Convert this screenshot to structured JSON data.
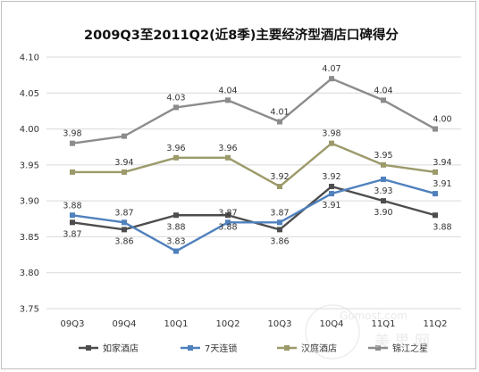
{
  "chart_data": {
    "type": "line",
    "title": "2009Q3至2011Q2(近8季)主要经济型酒店口碑得分",
    "xlabel": "",
    "ylabel": "",
    "categories": [
      "09Q3",
      "09Q4",
      "10Q1",
      "10Q2",
      "10Q3",
      "10Q4",
      "11Q1",
      "11Q2"
    ],
    "ylim": [
      3.75,
      4.1
    ],
    "yticks": [
      "3.75",
      "3.80",
      "3.85",
      "3.90",
      "3.95",
      "4.00",
      "4.05",
      "4.10"
    ],
    "grid": true,
    "legend": "bottom",
    "series": [
      {
        "name": "如家酒店",
        "color": "#4d4d4d",
        "marker": "square",
        "values": [
          3.87,
          3.86,
          3.88,
          3.88,
          3.86,
          3.92,
          3.9,
          3.88
        ],
        "labels": [
          "3.87",
          "3.86",
          "3.88",
          "3.88",
          "3.86",
          "3.92",
          "3.90",
          "3.88"
        ]
      },
      {
        "name": "7天连锁",
        "color": "#4f81bd",
        "marker": "square",
        "values": [
          3.88,
          3.87,
          3.83,
          3.87,
          3.87,
          3.91,
          3.93,
          3.91
        ],
        "labels": [
          "3.88",
          "3.87",
          "3.83",
          "3.87",
          "3.87",
          "3.91",
          "3.93",
          "3.91"
        ]
      },
      {
        "name": "汉庭酒店",
        "color": "#9c9a6a",
        "marker": "square",
        "values": [
          3.94,
          3.94,
          3.96,
          3.96,
          3.92,
          3.98,
          3.95,
          3.94
        ],
        "labels": [
          "",
          "3.94",
          "3.96",
          "3.96",
          "3.92",
          "3.98",
          "3.95",
          "3.94"
        ]
      },
      {
        "name": "锦江之星",
        "color": "#8c8c8c",
        "marker": "square",
        "values": [
          3.98,
          3.99,
          4.03,
          4.04,
          4.01,
          4.07,
          4.04,
          4.0
        ],
        "labels": [
          "3.98",
          "",
          "4.03",
          "4.04",
          "4.01",
          "4.07",
          "4.04",
          "4.00"
        ]
      }
    ]
  },
  "watermark": "Gomost.com 美思网"
}
